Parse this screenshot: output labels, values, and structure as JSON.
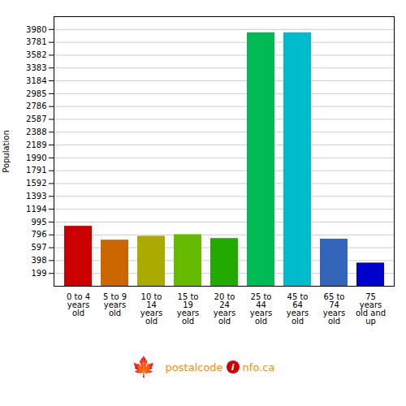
{
  "chart_data": {
    "type": "bar",
    "categories": [
      "0 to 4\nyears\nold",
      "5 to 9\nyears\nold",
      "10 to\n14\nyears\nold",
      "15 to\n19\nyears\nold",
      "20 to\n24\nyears\nold",
      "25 to\n44\nyears\nold",
      "45 to\n64\nyears\nold",
      "65 to\n74\nyears\nold",
      "75\nyears\nold and\nup"
    ],
    "values": [
      930,
      715,
      775,
      800,
      740,
      3930,
      3930,
      730,
      360
    ],
    "colors": [
      "#cc0000",
      "#cc6600",
      "#aaaa00",
      "#66bb00",
      "#22aa00",
      "#00bb55",
      "#00bbcc",
      "#3366bb",
      "#0000cc"
    ],
    "ylabel": "Population",
    "ylim": [
      0,
      4179
    ],
    "yticks": [
      199,
      398,
      597,
      796,
      995,
      1194,
      1393,
      1592,
      1791,
      1990,
      2189,
      2388,
      2587,
      2786,
      2985,
      3184,
      3383,
      3582,
      3781,
      3980
    ],
    "grid": true,
    "annotations": [
      {
        "text": "🍁",
        "color": "#cc0000"
      },
      {
        "text": "postalcode",
        "color": "#ff8c00"
      },
      {
        "text": "i",
        "color": "#ffffff",
        "background": "#cc0000"
      },
      {
        "text": "nfo.ca",
        "color": "#ff8c00"
      }
    ]
  }
}
